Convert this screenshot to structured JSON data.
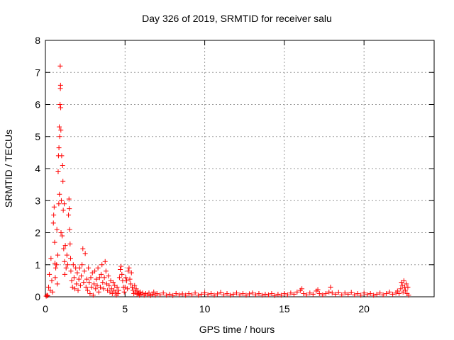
{
  "chart_data": {
    "type": "scatter",
    "title": "Day 326 of 2019, SRMTID for receiver salu",
    "xlabel": "GPS time / hours",
    "ylabel": "SRMTID / TECUs",
    "xlim": [
      0,
      24.4
    ],
    "ylim": [
      0,
      8
    ],
    "xticks": [
      0,
      5,
      10,
      15,
      20
    ],
    "yticks": [
      0,
      1,
      2,
      3,
      4,
      5,
      6,
      7,
      8
    ],
    "grid": true,
    "marker": "+",
    "color": "#ff0000",
    "series": [
      {
        "name": "SRMTID",
        "points": [
          [
            0.05,
            0.02
          ],
          [
            0.1,
            0.05
          ],
          [
            0.15,
            0.03
          ],
          [
            0.2,
            0.3
          ],
          [
            0.25,
            0.7
          ],
          [
            0.3,
            0.2
          ],
          [
            0.35,
            1.2
          ],
          [
            0.4,
            0.5
          ],
          [
            0.45,
            0.15
          ],
          [
            0.5,
            2.3
          ],
          [
            0.52,
            2.55
          ],
          [
            0.55,
            2.8
          ],
          [
            0.58,
            1.7
          ],
          [
            0.6,
            1.05
          ],
          [
            0.62,
            0.6
          ],
          [
            0.65,
            0.9
          ],
          [
            0.7,
            1.0
          ],
          [
            0.72,
            2.1
          ],
          [
            0.75,
            0.4
          ],
          [
            0.78,
            1.3
          ],
          [
            0.8,
            3.9
          ],
          [
            0.82,
            4.4
          ],
          [
            0.84,
            2.9
          ],
          [
            0.85,
            4.65
          ],
          [
            0.87,
            5.3
          ],
          [
            0.88,
            3.2
          ],
          [
            0.9,
            5.0
          ],
          [
            0.92,
            6.0
          ],
          [
            0.93,
            7.2
          ],
          [
            0.94,
            6.5
          ],
          [
            0.95,
            6.6
          ],
          [
            0.96,
            5.9
          ],
          [
            0.97,
            5.2
          ],
          [
            0.98,
            2.0
          ],
          [
            1.0,
            3.0
          ],
          [
            1.02,
            4.4
          ],
          [
            1.05,
            1.9
          ],
          [
            1.08,
            4.1
          ],
          [
            1.1,
            3.6
          ],
          [
            1.12,
            2.7
          ],
          [
            1.15,
            1.5
          ],
          [
            1.18,
            2.9
          ],
          [
            1.2,
            1.1
          ],
          [
            1.22,
            0.7
          ],
          [
            1.25,
            1.6
          ],
          [
            1.3,
            0.9
          ],
          [
            1.35,
            1.3
          ],
          [
            1.4,
            1.0
          ],
          [
            1.45,
            2.55
          ],
          [
            1.48,
            3.05
          ],
          [
            1.5,
            2.75
          ],
          [
            1.52,
            2.1
          ],
          [
            1.55,
            1.65
          ],
          [
            1.58,
            1.2
          ],
          [
            1.6,
            0.8
          ],
          [
            1.65,
            0.5
          ],
          [
            1.7,
            0.3
          ],
          [
            1.75,
            1.0
          ],
          [
            1.8,
            0.6
          ],
          [
            1.85,
            0.25
          ],
          [
            1.9,
            0.9
          ],
          [
            1.95,
            0.4
          ],
          [
            2.0,
            0.75
          ],
          [
            2.05,
            0.2
          ],
          [
            2.1,
            0.55
          ],
          [
            2.15,
            0.9
          ],
          [
            2.2,
            0.35
          ],
          [
            2.25,
            0.65
          ],
          [
            2.3,
            1.0
          ],
          [
            2.35,
            1.5
          ],
          [
            2.4,
            0.45
          ],
          [
            2.45,
            0.8
          ],
          [
            2.5,
            1.35
          ],
          [
            2.55,
            0.3
          ],
          [
            2.6,
            0.55
          ],
          [
            2.65,
            0.2
          ],
          [
            2.7,
            0.9
          ],
          [
            2.75,
            0.45
          ],
          [
            2.8,
            0.1
          ],
          [
            2.85,
            0.6
          ],
          [
            2.9,
            0.3
          ],
          [
            2.95,
            0.75
          ],
          [
            3.0,
            0.05
          ],
          [
            3.05,
            0.4
          ],
          [
            3.1,
            0.8
          ],
          [
            3.15,
            0.25
          ],
          [
            3.2,
            0.55
          ],
          [
            3.25,
            0.35
          ],
          [
            3.3,
            0.9
          ],
          [
            3.35,
            0.15
          ],
          [
            3.4,
            0.6
          ],
          [
            3.45,
            0.3
          ],
          [
            3.5,
            0.7
          ],
          [
            3.55,
            1.0
          ],
          [
            3.6,
            0.45
          ],
          [
            3.65,
            0.25
          ],
          [
            3.7,
            0.6
          ],
          [
            3.75,
            1.1
          ],
          [
            3.8,
            0.8
          ],
          [
            3.85,
            0.4
          ],
          [
            3.9,
            0.2
          ],
          [
            3.95,
            0.65
          ],
          [
            4.0,
            0.35
          ],
          [
            4.05,
            0.15
          ],
          [
            4.1,
            0.5
          ],
          [
            4.15,
            0.25
          ],
          [
            4.2,
            0.1
          ],
          [
            4.25,
            0.45
          ],
          [
            4.3,
            0.2
          ],
          [
            4.35,
            0.35
          ],
          [
            4.4,
            0.15
          ],
          [
            4.45,
            0.05
          ],
          [
            4.5,
            0.3
          ],
          [
            4.55,
            0.1
          ],
          [
            4.6,
            0.2
          ],
          [
            4.65,
            0.6
          ],
          [
            4.7,
            0.85
          ],
          [
            4.75,
            0.95
          ],
          [
            4.8,
            0.7
          ],
          [
            4.85,
            0.5
          ],
          [
            4.9,
            0.3
          ],
          [
            4.95,
            0.15
          ],
          [
            5.0,
            0.3
          ],
          [
            5.05,
            0.6
          ],
          [
            5.1,
            0.5
          ],
          [
            5.15,
            0.25
          ],
          [
            5.2,
            0.8
          ],
          [
            5.25,
            0.9
          ],
          [
            5.3,
            0.55
          ],
          [
            5.35,
            0.4
          ],
          [
            5.4,
            0.75
          ],
          [
            5.45,
            0.3
          ],
          [
            5.5,
            0.2
          ],
          [
            5.55,
            0.1
          ],
          [
            5.6,
            0.35
          ],
          [
            5.65,
            0.15
          ],
          [
            5.7,
            0.25
          ],
          [
            5.75,
            0.08
          ],
          [
            5.8,
            0.18
          ],
          [
            5.85,
            0.1
          ],
          [
            5.9,
            0.05
          ],
          [
            5.95,
            0.15
          ],
          [
            6.0,
            0.08
          ],
          [
            6.1,
            0.12
          ],
          [
            6.2,
            0.05
          ],
          [
            6.3,
            0.1
          ],
          [
            6.4,
            0.06
          ],
          [
            6.5,
            0.12
          ],
          [
            6.6,
            0.04
          ],
          [
            6.7,
            0.08
          ],
          [
            6.8,
            0.15
          ],
          [
            6.9,
            0.05
          ],
          [
            7.0,
            0.1
          ],
          [
            7.2,
            0.06
          ],
          [
            7.4,
            0.12
          ],
          [
            7.6,
            0.05
          ],
          [
            7.8,
            0.08
          ],
          [
            8.0,
            0.04
          ],
          [
            8.2,
            0.1
          ],
          [
            8.4,
            0.06
          ],
          [
            8.6,
            0.09
          ],
          [
            8.8,
            0.05
          ],
          [
            9.0,
            0.1
          ],
          [
            9.2,
            0.06
          ],
          [
            9.4,
            0.12
          ],
          [
            9.6,
            0.05
          ],
          [
            9.8,
            0.08
          ],
          [
            10.0,
            0.13
          ],
          [
            10.2,
            0.07
          ],
          [
            10.4,
            0.1
          ],
          [
            10.6,
            0.05
          ],
          [
            10.8,
            0.09
          ],
          [
            11.0,
            0.14
          ],
          [
            11.2,
            0.06
          ],
          [
            11.4,
            0.1
          ],
          [
            11.6,
            0.05
          ],
          [
            11.8,
            0.08
          ],
          [
            12.0,
            0.12
          ],
          [
            12.2,
            0.06
          ],
          [
            12.4,
            0.1
          ],
          [
            12.6,
            0.05
          ],
          [
            12.8,
            0.09
          ],
          [
            13.0,
            0.12
          ],
          [
            13.2,
            0.06
          ],
          [
            13.4,
            0.1
          ],
          [
            13.6,
            0.05
          ],
          [
            13.8,
            0.08
          ],
          [
            14.0,
            0.06
          ],
          [
            14.2,
            0.1
          ],
          [
            14.4,
            0.04
          ],
          [
            14.6,
            0.08
          ],
          [
            14.8,
            0.05
          ],
          [
            15.0,
            0.1
          ],
          [
            15.2,
            0.06
          ],
          [
            15.4,
            0.12
          ],
          [
            15.6,
            0.08
          ],
          [
            15.8,
            0.15
          ],
          [
            16.0,
            0.2
          ],
          [
            16.1,
            0.25
          ],
          [
            16.2,
            0.1
          ],
          [
            16.4,
            0.06
          ],
          [
            16.6,
            0.12
          ],
          [
            16.8,
            0.08
          ],
          [
            17.0,
            0.18
          ],
          [
            17.1,
            0.22
          ],
          [
            17.2,
            0.1
          ],
          [
            17.4,
            0.06
          ],
          [
            17.6,
            0.1
          ],
          [
            17.8,
            0.15
          ],
          [
            17.9,
            0.3
          ],
          [
            18.0,
            0.12
          ],
          [
            18.2,
            0.08
          ],
          [
            18.4,
            0.14
          ],
          [
            18.6,
            0.06
          ],
          [
            18.8,
            0.12
          ],
          [
            19.0,
            0.08
          ],
          [
            19.2,
            0.14
          ],
          [
            19.4,
            0.06
          ],
          [
            19.6,
            0.1
          ],
          [
            19.8,
            0.05
          ],
          [
            20.0,
            0.12
          ],
          [
            20.2,
            0.07
          ],
          [
            20.4,
            0.1
          ],
          [
            20.6,
            0.05
          ],
          [
            20.8,
            0.08
          ],
          [
            21.0,
            0.12
          ],
          [
            21.2,
            0.06
          ],
          [
            21.4,
            0.1
          ],
          [
            21.6,
            0.15
          ],
          [
            21.8,
            0.08
          ],
          [
            22.0,
            0.12
          ],
          [
            22.1,
            0.18
          ],
          [
            22.2,
            0.1
          ],
          [
            22.3,
            0.25
          ],
          [
            22.35,
            0.45
          ],
          [
            22.4,
            0.35
          ],
          [
            22.45,
            0.15
          ],
          [
            22.5,
            0.5
          ],
          [
            22.55,
            0.3
          ],
          [
            22.6,
            0.2
          ],
          [
            22.65,
            0.4
          ],
          [
            22.7,
            0.1
          ],
          [
            22.75,
            0.3
          ],
          [
            22.8,
            0.05
          ]
        ]
      }
    ]
  }
}
